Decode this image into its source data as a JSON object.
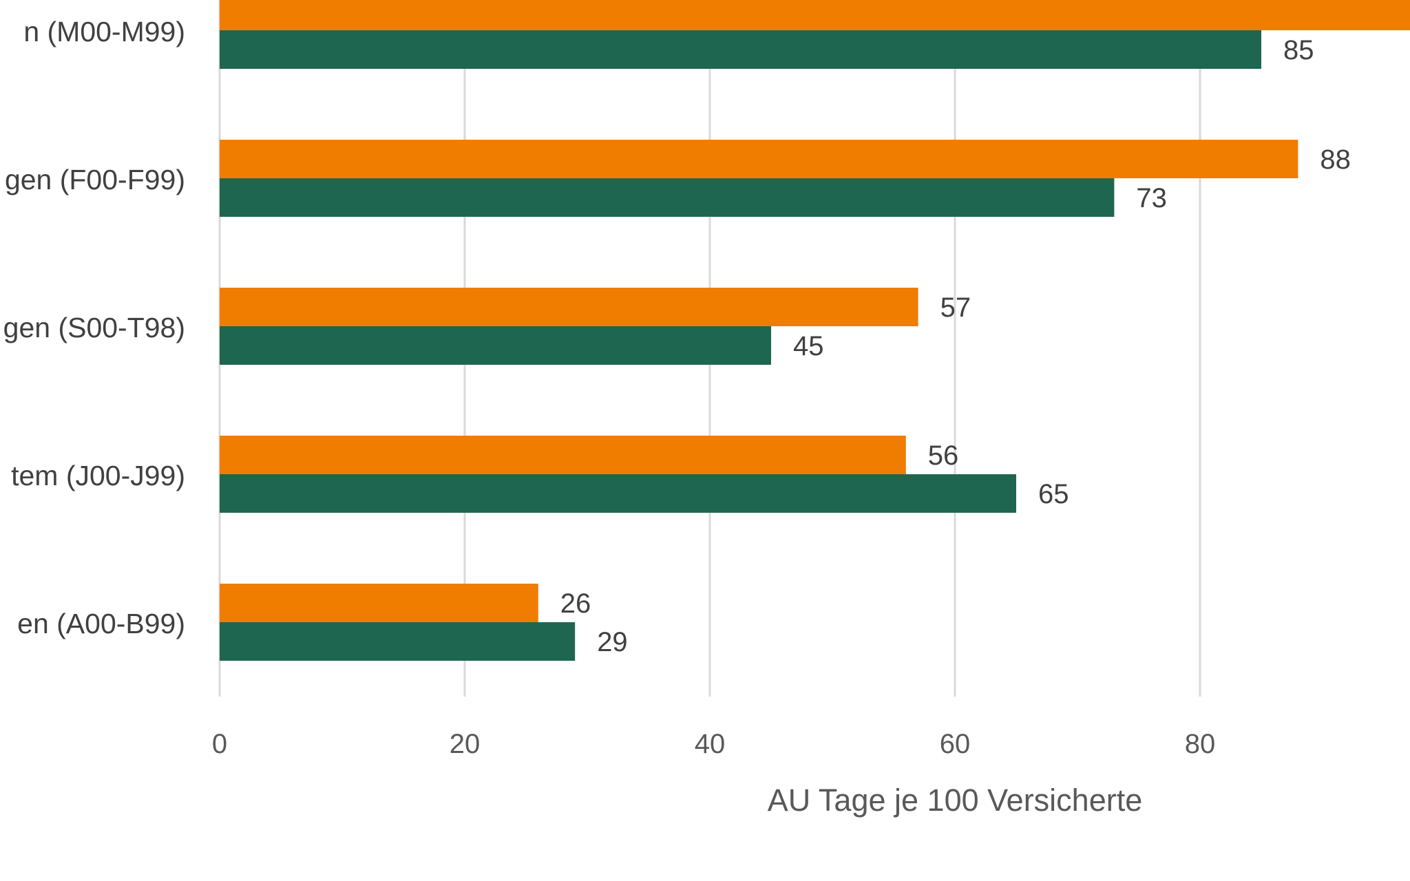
{
  "chart_data": {
    "type": "bar",
    "orientation": "horizontal",
    "categories": [
      "n (M00-M99)",
      "gen (F00-F99)",
      "gen (S00-T98)",
      "tem (J00-J99)",
      "en (A00-B99)"
    ],
    "series": [
      {
        "color": "#F07C00",
        "values": [
          null,
          88,
          57,
          56,
          26
        ]
      },
      {
        "color": "#1F6650",
        "values": [
          85,
          73,
          45,
          65,
          29
        ]
      }
    ],
    "data_labels": [
      [
        "",
        "88",
        "57",
        "56",
        "26"
      ],
      [
        "85",
        "73",
        "45",
        "65",
        "29"
      ]
    ],
    "xlabel": "AU Tage je 100 Versicherte",
    "ylabel": "",
    "xlim": [
      0,
      100
    ],
    "x_ticks": [
      "0",
      "20",
      "40",
      "60",
      "80"
    ],
    "grid": true,
    "legend": "none"
  }
}
